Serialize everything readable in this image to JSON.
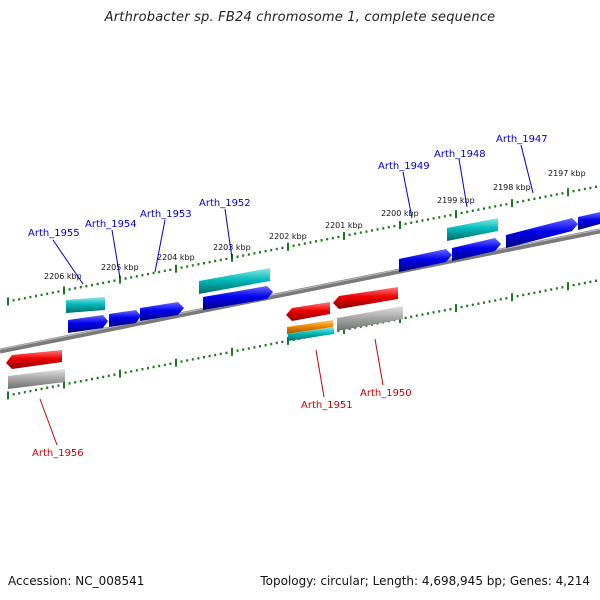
{
  "title": "Arthrobacter sp. FB24 chromosome 1, complete sequence",
  "footer": {
    "accession": "Accession: NC_008541",
    "summary": "Topology: circular; Length: 4,698,945 bp; Genes: 4,214"
  },
  "colors": {
    "backbone": "#777777",
    "ticks": "#1a7a1a",
    "gene_blue": "#0000ee",
    "gene_red": "#ee0000",
    "gene_cyan": "#00bbbb",
    "gene_grey": "#aaaaaa",
    "gene_orange": "#ee8800",
    "label_blue": "#0000cc",
    "label_red": "#cc0000"
  },
  "kbp_labels": [
    "2206 kbp",
    "2205 kbp",
    "2204 kbp",
    "2203 kbp",
    "2202 kbp",
    "2201 kbp",
    "2200 kbp",
    "2199 kbp",
    "2198 kbp",
    "2197 kbp"
  ],
  "gene_labels_top": [
    "Arth_1955",
    "Arth_1954",
    "Arth_1953",
    "Arth_1952",
    "Arth_1949",
    "Arth_1948",
    "Arth_1947"
  ],
  "gene_labels_bottom": [
    "Arth_1956",
    "Arth_1951",
    "Arth_1950"
  ]
}
